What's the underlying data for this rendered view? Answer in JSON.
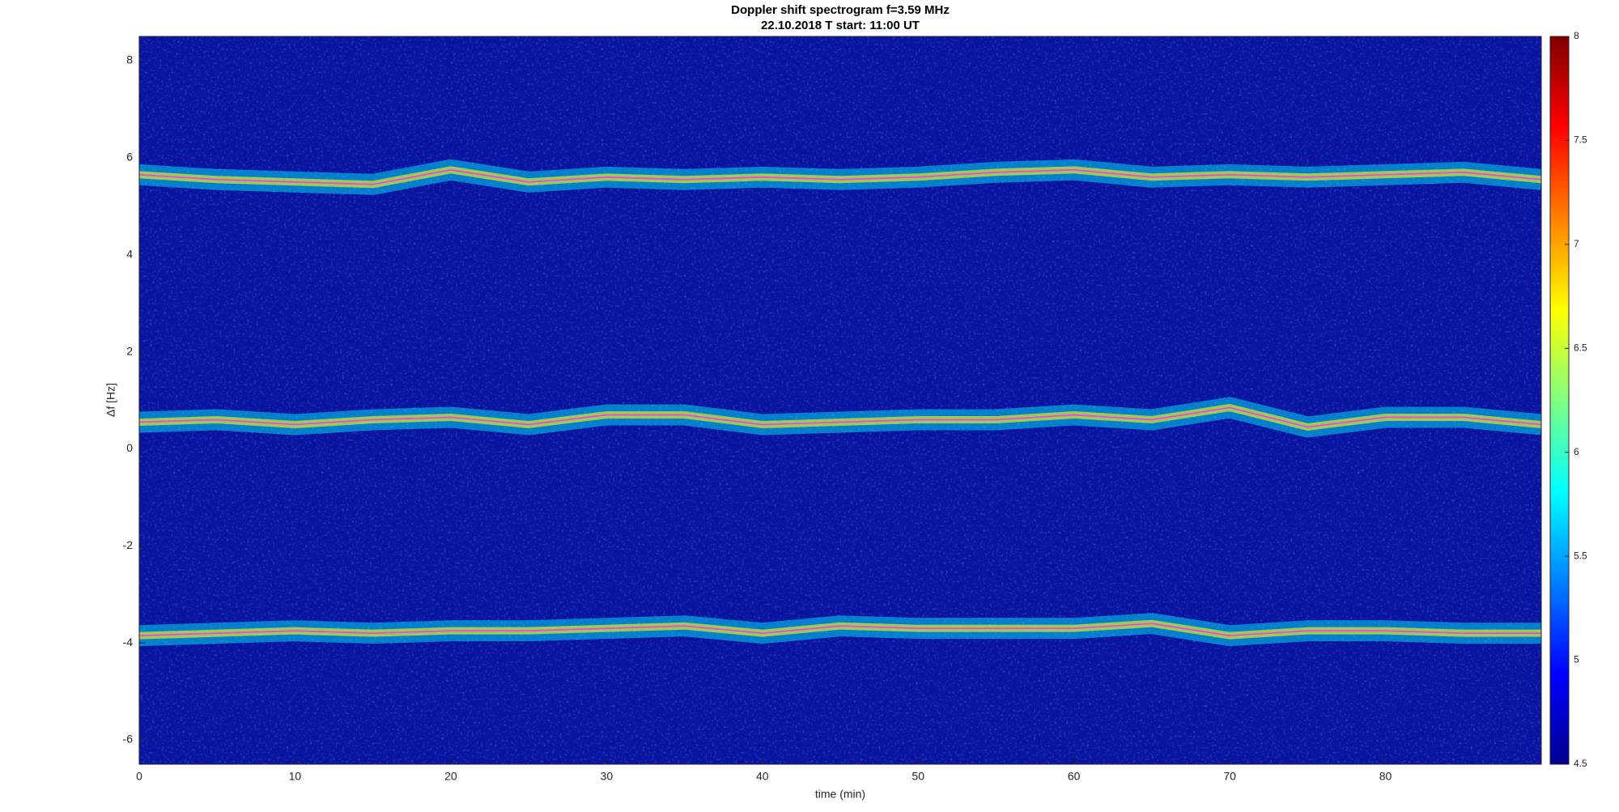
{
  "chart_data": {
    "type": "spectrogram",
    "title": "Doppler shift spectrogram f=3.59 MHz",
    "subtitle": "22.10.2018   T start: 11:00 UT",
    "xlabel": "time (min)",
    "ylabel": "Δf [Hz]",
    "xlim": [
      0,
      90
    ],
    "xticks": [
      0,
      10,
      20,
      30,
      40,
      50,
      60,
      70,
      80
    ],
    "ylim": [
      -6.5,
      8.5
    ],
    "yticks": [
      -6,
      -4,
      -2,
      0,
      2,
      4,
      6,
      8
    ],
    "colormap": "jet",
    "clim": [
      4.5,
      8
    ],
    "cticks": [
      4.5,
      5,
      5.5,
      6,
      6.5,
      7,
      7.5,
      8
    ],
    "x": [
      0,
      5,
      10,
      15,
      20,
      25,
      30,
      35,
      40,
      45,
      50,
      55,
      60,
      65,
      70,
      75,
      80,
      85,
      90
    ],
    "series": [
      {
        "color": "#ff33ff",
        "values": [
          5.65,
          5.55,
          5.5,
          5.45,
          5.75,
          5.5,
          5.6,
          5.55,
          5.6,
          5.55,
          5.6,
          5.7,
          5.75,
          5.6,
          5.65,
          5.6,
          5.65,
          5.7,
          5.55
        ]
      },
      {
        "color": "#ff33ff",
        "values": [
          0.55,
          0.6,
          0.5,
          0.6,
          0.65,
          0.5,
          0.7,
          0.7,
          0.5,
          0.55,
          0.6,
          0.6,
          0.7,
          0.6,
          0.85,
          0.45,
          0.65,
          0.65,
          0.5
        ]
      },
      {
        "color": "#ff33ff",
        "values": [
          -3.85,
          -3.8,
          -3.75,
          -3.8,
          -3.75,
          -3.75,
          -3.7,
          -3.65,
          -3.8,
          -3.65,
          -3.7,
          -3.7,
          -3.7,
          -3.6,
          -3.85,
          -3.75,
          -3.75,
          -3.8,
          -3.8
        ]
      }
    ]
  }
}
